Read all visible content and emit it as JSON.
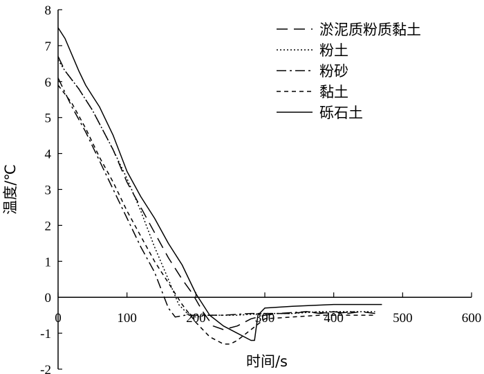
{
  "chart_data": {
    "type": "line",
    "xlabel": "时间/s",
    "ylabel": "温度/℃",
    "xlim": [
      0,
      600
    ],
    "ylim": [
      -2,
      8
    ],
    "xticks": [
      0,
      100,
      200,
      300,
      400,
      500,
      600
    ],
    "yticks": [
      -2,
      -1,
      0,
      1,
      2,
      3,
      4,
      5,
      6,
      7,
      8
    ],
    "legend_position": "top-right",
    "grid": false,
    "series": [
      {
        "name": "淤泥质粉质黏土",
        "dash": "longdash",
        "x": [
          0,
          10,
          30,
          50,
          80,
          100,
          120,
          140,
          160,
          180,
          195,
          210,
          225,
          240,
          260,
          280,
          300,
          320,
          340,
          360,
          380,
          400,
          420,
          440,
          460
        ],
        "y": [
          6.7,
          6.3,
          5.8,
          5.2,
          4.1,
          3.2,
          2.5,
          1.8,
          1.1,
          0.5,
          0.1,
          -0.4,
          -0.8,
          -0.9,
          -0.8,
          -0.6,
          -0.5,
          -0.45,
          -0.45,
          -0.4,
          -0.45,
          -0.4,
          -0.45,
          -0.4,
          -0.45
        ]
      },
      {
        "name": "粉土",
        "dash": "dotted",
        "x": [
          0,
          10,
          30,
          50,
          80,
          100,
          120,
          140,
          160,
          175,
          190,
          200,
          220,
          260,
          300,
          340,
          380,
          420,
          460
        ],
        "y": [
          6.6,
          6.3,
          5.8,
          5.2,
          4.1,
          3.3,
          2.4,
          1.4,
          0.5,
          -0.2,
          -0.5,
          -0.55,
          -0.5,
          -0.5,
          -0.45,
          -0.45,
          -0.4,
          -0.4,
          -0.4
        ]
      },
      {
        "name": "粉砂",
        "dash": "dashdot",
        "x": [
          0,
          20,
          40,
          60,
          80,
          100,
          120,
          140,
          150,
          160,
          170,
          185,
          200,
          240,
          280,
          320,
          360,
          400,
          430
        ],
        "y": [
          6.1,
          5.3,
          4.6,
          3.8,
          3.0,
          2.2,
          1.4,
          0.7,
          0.2,
          -0.3,
          -0.55,
          -0.5,
          -0.5,
          -0.5,
          -0.45,
          -0.45,
          -0.4,
          -0.45,
          -0.4
        ]
      },
      {
        "name": "黏土",
        "dash": "shortdash",
        "x": [
          0,
          20,
          40,
          60,
          80,
          100,
          120,
          140,
          160,
          180,
          200,
          220,
          240,
          250,
          260,
          280,
          300,
          340,
          380,
          420,
          460
        ],
        "y": [
          5.9,
          5.4,
          4.7,
          3.9,
          3.2,
          2.4,
          1.7,
          1.0,
          0.4,
          -0.2,
          -0.7,
          -1.1,
          -1.3,
          -1.3,
          -1.2,
          -0.9,
          -0.6,
          -0.55,
          -0.5,
          -0.5,
          -0.5
        ]
      },
      {
        "name": "砾石土",
        "dash": "solid",
        "x": [
          0,
          10,
          30,
          40,
          50,
          60,
          80,
          100,
          120,
          140,
          160,
          180,
          200,
          220,
          240,
          260,
          280,
          285,
          290,
          300,
          340,
          400,
          470
        ],
        "y": [
          7.5,
          7.2,
          6.3,
          5.9,
          5.6,
          5.3,
          4.5,
          3.5,
          2.8,
          2.2,
          1.5,
          0.9,
          0.1,
          -0.5,
          -0.8,
          -1.0,
          -1.2,
          -1.2,
          -0.5,
          -0.3,
          -0.25,
          -0.2,
          -0.2
        ]
      }
    ]
  }
}
